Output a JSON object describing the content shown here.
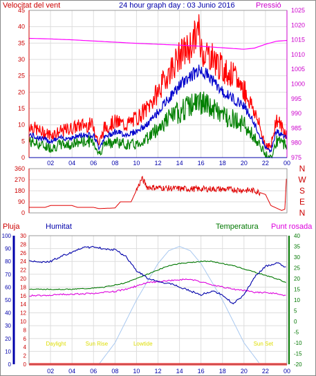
{
  "colors": {
    "wind": "#ff0000",
    "gust": "#ff0000",
    "wind_avg": "#0000cc",
    "wind_low": "#008000",
    "pressure": "#ff00ff",
    "direction": "#e00000",
    "rain": "#ff0000",
    "humidity": "#0000aa",
    "temperature": "#007700",
    "dewpoint": "#dd00dd",
    "solar": "#a8c8f0",
    "grid": "#dddddd",
    "axis_left": "#cc0000",
    "axis_right": "#cc00cc",
    "axis_bottom": "#0000aa",
    "sun_events": "#dddd00",
    "rain_axis_left": "#cc0000",
    "humidity_axis": "#0000aa",
    "temp_axis": "#007700"
  },
  "chart_data": [
    {
      "type": "line",
      "title": "24 hour graph day : 03 Junio 2016",
      "left_label": "Velocitat del vent",
      "right_label": "Pressió",
      "x_ticks": [
        "02",
        "04",
        "06",
        "08",
        "10",
        "12",
        "14",
        "16",
        "18",
        "20",
        "22",
        "00"
      ],
      "left_ticks": [
        "0",
        "5",
        "10",
        "15",
        "20",
        "25",
        "30",
        "35",
        "40",
        "45"
      ],
      "right_ticks": [
        "975",
        "980",
        "985",
        "990",
        "995",
        "1000",
        "1005",
        "1010",
        "1015",
        "1020",
        "1025"
      ],
      "left_ylim": [
        0,
        45
      ],
      "right_ylim": [
        975,
        1025
      ],
      "x_range_hours": [
        0,
        24
      ],
      "series": [
        {
          "key": "gust",
          "hours": [
            0,
            1,
            2,
            3,
            4,
            5,
            6,
            6.5,
            7,
            8,
            9,
            10,
            11,
            12,
            13,
            14,
            15,
            15.8,
            16,
            17,
            18,
            19,
            20,
            21,
            22,
            22.5,
            23,
            24
          ],
          "values": [
            10,
            8,
            7,
            8,
            9,
            10,
            10,
            4,
            9,
            11,
            10,
            12,
            15,
            20,
            26,
            31,
            34,
            39,
            33,
            31,
            27,
            25,
            21,
            14,
            4,
            3,
            12,
            7
          ]
        },
        {
          "key": "avg",
          "hours": [
            0,
            1,
            2,
            3,
            4,
            5,
            6,
            6.5,
            7,
            8,
            9,
            10,
            11,
            12,
            13,
            14,
            15,
            16,
            17,
            18,
            19,
            20,
            21,
            22,
            22.5,
            23,
            24
          ],
          "values": [
            7,
            6,
            5,
            6,
            6,
            7,
            7,
            3,
            6,
            8,
            7,
            8,
            10,
            14,
            18,
            22,
            25,
            27,
            24,
            20,
            18,
            16,
            10,
            3,
            2,
            8,
            6
          ]
        },
        {
          "key": "low",
          "hours": [
            0,
            1,
            2,
            3,
            4,
            5,
            6,
            6.5,
            7,
            8,
            9,
            10,
            11,
            12,
            13,
            14,
            15,
            16,
            17,
            18,
            19,
            20,
            21,
            22,
            22.5,
            23,
            24
          ],
          "values": [
            5,
            4,
            3,
            4,
            4,
            5,
            5,
            1,
            4,
            5,
            4,
            4,
            6,
            9,
            12,
            14,
            16,
            17,
            15,
            13,
            12,
            10,
            6,
            1,
            0,
            5,
            4
          ]
        },
        {
          "key": "pressure",
          "hours": [
            0,
            2,
            4,
            6,
            8,
            10,
            12,
            14,
            16,
            18,
            20,
            21,
            22,
            23,
            24
          ],
          "values": [
            1015.5,
            1015.3,
            1015,
            1014.6,
            1014.2,
            1013.8,
            1013.5,
            1013.2,
            1012.8,
            1012.3,
            1011.8,
            1012.2,
            1013.5,
            1014.5,
            1014.8
          ]
        }
      ]
    },
    {
      "type": "line",
      "title": "",
      "left_ticks": [
        "0",
        "90",
        "180",
        "270",
        "360"
      ],
      "right_ticks": [
        "N",
        "W",
        "S",
        "E",
        "N"
      ],
      "ylim": [
        0,
        360
      ],
      "x_range_hours": [
        0,
        24
      ],
      "series": [
        {
          "key": "direction",
          "hours": [
            0,
            1.5,
            2,
            4,
            4.5,
            6,
            6.5,
            8,
            8.5,
            9.5,
            10,
            10.5,
            11,
            13,
            15,
            17,
            19,
            20,
            21,
            22,
            22.5,
            23.5,
            23.8,
            24
          ],
          "values": [
            45,
            45,
            60,
            60,
            45,
            45,
            35,
            40,
            90,
            90,
            185,
            280,
            210,
            200,
            195,
            195,
            190,
            185,
            180,
            150,
            60,
            20,
            30,
            360
          ]
        }
      ]
    },
    {
      "type": "line",
      "title": "",
      "rain_label": "Pluja",
      "humidity_label": "Humitat",
      "temp_label": "Temperatura",
      "dew_label": "Punt rosada",
      "rain_ticks": [
        "0",
        "2",
        "4",
        "6",
        "8",
        "10",
        "12",
        "14",
        "16",
        "18",
        "20",
        "22",
        "24",
        "26",
        "28",
        "30"
      ],
      "humidity_ticks": [
        "0",
        "10",
        "20",
        "30",
        "40",
        "50",
        "60",
        "70",
        "80",
        "90",
        "100"
      ],
      "temp_ticks": [
        "-20",
        "-15",
        "-10",
        "-5",
        "0",
        "5",
        "10",
        "15",
        "20",
        "25",
        "30",
        "35",
        "40"
      ],
      "x_ticks": [
        "02",
        "04",
        "06",
        "08",
        "10",
        "12",
        "14",
        "16",
        "18",
        "20",
        "22",
        "00"
      ],
      "humidity_ylim": [
        0,
        100
      ],
      "temp_ylim": [
        -20,
        40
      ],
      "rain_ylim": [
        0,
        30
      ],
      "x_range_hours": [
        0,
        24
      ],
      "sun_events": [
        {
          "hour": 0.5,
          "label": "Daylight"
        },
        {
          "hour": 4.3,
          "label": "Sun Rise"
        },
        {
          "hour": 8.6,
          "label": "Lowtide"
        },
        {
          "hour": 19.8,
          "label": "Sun Set"
        }
      ],
      "series": [
        {
          "key": "humidity",
          "hours": [
            0,
            1,
            2,
            3,
            4,
            5,
            6,
            7,
            8,
            9,
            10,
            11,
            12,
            13,
            14,
            15,
            16,
            17,
            18,
            19,
            20,
            21,
            22,
            23,
            24
          ],
          "values": [
            81,
            79,
            80,
            84,
            87,
            91,
            91,
            90,
            89,
            84,
            73,
            67,
            64,
            63,
            60,
            57,
            54,
            57,
            54,
            47,
            54,
            68,
            76,
            79,
            75
          ]
        },
        {
          "key": "temperature",
          "hours": [
            0,
            2,
            4,
            6,
            7,
            8,
            9,
            10,
            11,
            12,
            13,
            14,
            15,
            16,
            17,
            18,
            19,
            20,
            21,
            22,
            23,
            24
          ],
          "values": [
            15,
            15,
            15,
            15.5,
            16,
            17,
            18,
            20,
            22,
            24,
            26,
            27,
            27.5,
            28,
            28,
            27,
            26,
            24.5,
            23,
            21.5,
            20,
            18
          ]
        },
        {
          "key": "dewpoint",
          "hours": [
            0,
            2,
            4,
            6,
            7,
            8,
            9,
            10,
            11,
            12,
            13,
            14,
            15,
            16,
            17,
            18,
            19,
            20,
            21,
            22,
            23,
            24
          ],
          "values": [
            12,
            12.3,
            12.8,
            13,
            13.5,
            14,
            15,
            16.5,
            18,
            18.5,
            19,
            19.5,
            19.5,
            18.5,
            17,
            16,
            15,
            14.5,
            13.5,
            13.5,
            13,
            12
          ]
        },
        {
          "key": "solar",
          "hours": [
            6.5,
            8,
            10,
            12,
            13,
            14,
            15,
            16,
            18,
            20,
            21.5
          ],
          "values": [
            -20,
            -10,
            10,
            27,
            33,
            35,
            33,
            27,
            10,
            -10,
            -20
          ]
        },
        {
          "key": "rain",
          "hours": [
            0,
            24
          ],
          "values": [
            0,
            0
          ]
        }
      ]
    }
  ]
}
